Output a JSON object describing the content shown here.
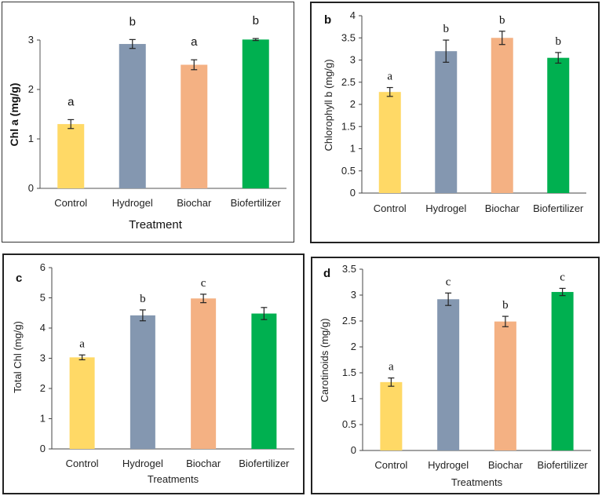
{
  "colors": {
    "Control": "#ffd966",
    "Hydrogel": "#8497b0",
    "Biochar": "#f4b183",
    "Biofertilizer": "#00b050"
  },
  "chart_data": [
    {
      "panel": "a",
      "type": "bar",
      "panel_label": "",
      "categories": [
        "Control",
        "Hydrogel",
        "Biochar",
        "Biofertilizer"
      ],
      "values": [
        1.3,
        2.92,
        2.5,
        3.01
      ],
      "errors": [
        0.09,
        0.09,
        0.1,
        0.02
      ],
      "significance": [
        "a",
        "b",
        "a",
        "b"
      ],
      "ylabel": "Chl a (mg/g)",
      "xlabel": "Treatment",
      "ylim": [
        0,
        3
      ],
      "yticks": [
        "0",
        "1",
        "2",
        "3"
      ]
    },
    {
      "panel": "b",
      "type": "bar",
      "panel_label": "b",
      "categories": [
        "Control",
        "Hydrogel",
        "Biochar",
        "Biofertilizer"
      ],
      "values": [
        2.28,
        3.2,
        3.5,
        3.05
      ],
      "errors": [
        0.1,
        0.25,
        0.15,
        0.12
      ],
      "significance": [
        "a",
        "b",
        "b",
        "b"
      ],
      "ylabel": "Chlorophyll b (mg/g)",
      "xlabel": "",
      "ylim": [
        0,
        4
      ],
      "yticks": [
        "0",
        "0.5",
        "1",
        "1.5",
        "2",
        "2.5",
        "3",
        "3.5",
        "4"
      ]
    },
    {
      "panel": "c",
      "type": "bar",
      "panel_label": "c",
      "categories": [
        "Control",
        "Hydrogel",
        "Biochar",
        "Biofertilizer"
      ],
      "values": [
        3.03,
        4.42,
        4.98,
        4.48
      ],
      "errors": [
        0.08,
        0.18,
        0.14,
        0.2
      ],
      "significance": [
        "a",
        "b",
        "c",
        ""
      ],
      "ylabel": "Total Chl (mg/g)",
      "xlabel": "Treatments",
      "ylim": [
        0,
        6
      ],
      "yticks": [
        "0",
        "1",
        "2",
        "3",
        "4",
        "5",
        "6"
      ]
    },
    {
      "panel": "d",
      "type": "bar",
      "panel_label": "d",
      "categories": [
        "Control",
        "Hydrogel",
        "Biochar",
        "Biofertilizer"
      ],
      "values": [
        1.32,
        2.92,
        2.49,
        3.06
      ],
      "errors": [
        0.08,
        0.12,
        0.1,
        0.07
      ],
      "significance": [
        "a",
        "c",
        "b",
        "c"
      ],
      "ylabel": "Carotinoids (mg/g)",
      "xlabel": "Treatments",
      "ylim": [
        0,
        3.5
      ],
      "yticks": [
        "0",
        "0.5",
        "1",
        "1.5",
        "2",
        "2.5",
        "3",
        "3.5"
      ]
    }
  ]
}
